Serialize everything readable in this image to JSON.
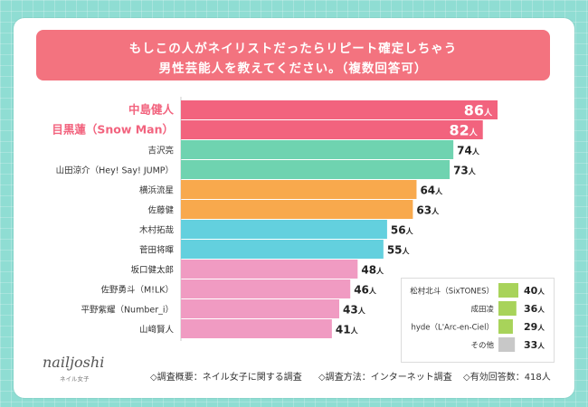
{
  "title": {
    "line1": "もしこの人がネイリストだったらリピート確定しちゃう",
    "line2": "男性芸能人を教えてください。（複数回答可）"
  },
  "brand": {
    "name": "nailjoshi",
    "sub": "ネイル女子"
  },
  "footer": {
    "summary": "◇調査概要：ネイル女子に関する調査",
    "method": "◇調査方法：インターネット調査",
    "respondents": "◇有効回答数：418人"
  },
  "colors": {
    "pink_top": "#f2637e",
    "green": "#6fd3b0",
    "orange": "#f8a94d",
    "blue": "#63d0de",
    "pink_light": "#f09bc2",
    "lime": "#a8d35a",
    "gray": "#c8c8c8",
    "top_label": "#f2637e"
  },
  "chart_data": {
    "type": "bar",
    "orientation": "horizontal",
    "unit": "人",
    "xlim": [
      0,
      100
    ],
    "main": {
      "categories": [
        "中島健人",
        "目黒蓮（Snow Man）",
        "吉沢亮",
        "山田涼介（Hey! Say! JUMP）",
        "横浜流星",
        "佐藤健",
        "木村拓哉",
        "菅田将暉",
        "坂口健太郎",
        "佐野勇斗（M!LK）",
        "平野紫耀（Number_i）",
        "山﨑賢人"
      ],
      "values": [
        86,
        82,
        74,
        73,
        64,
        63,
        56,
        55,
        48,
        46,
        43,
        41
      ],
      "color_groups": [
        "pink_top",
        "pink_top",
        "green",
        "green",
        "orange",
        "orange",
        "blue",
        "blue",
        "pink_light",
        "pink_light",
        "pink_light",
        "pink_light"
      ]
    },
    "side": {
      "categories": [
        "松村北斗（SixTONES）",
        "成田凌",
        "hyde（L'Arc-en-Ciel）",
        "その他"
      ],
      "values": [
        40,
        36,
        29,
        33
      ],
      "color_groups": [
        "lime",
        "lime",
        "lime",
        "gray"
      ]
    }
  }
}
